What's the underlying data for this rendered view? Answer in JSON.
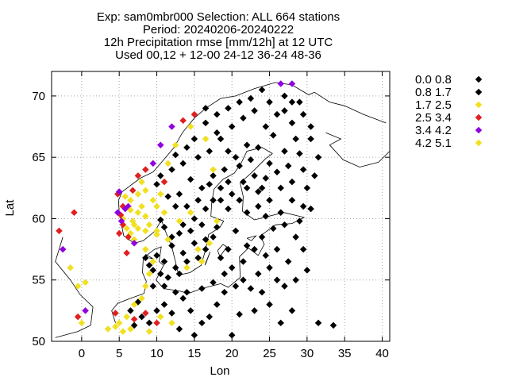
{
  "chart_data": {
    "type": "scatter",
    "title_lines": [
      "Exp: sam0mbr000   Selection: ALL    664 stations",
      "Period: 20240206-20240222",
      "12h Precipitation rmse [mm/12h] at  12 UTC",
      "Used 00,12 + 12-00 24-12 36-24 48-36"
    ],
    "xlabel": "Lon",
    "ylabel": "Lat",
    "xlim": [
      -4,
      41
    ],
    "ylim": [
      50,
      72
    ],
    "xticks": [
      0,
      5,
      10,
      15,
      20,
      25,
      30,
      35,
      40
    ],
    "yticks": [
      50,
      55,
      60,
      65,
      70
    ],
    "grid": true,
    "legend_position": "outside-right",
    "series": [
      {
        "name": "0.0 0.8",
        "color": "#000000",
        "points": [
          [
            10.5,
            59.9
          ],
          [
            11.0,
            59.3
          ],
          [
            12.0,
            58.5
          ],
          [
            13.5,
            59.5
          ],
          [
            15.0,
            60.0
          ],
          [
            16.5,
            60.8
          ],
          [
            18.0,
            59.3
          ],
          [
            17.5,
            61.5
          ],
          [
            16.0,
            62.5
          ],
          [
            14.5,
            63.2
          ],
          [
            13.0,
            62.0
          ],
          [
            12.5,
            61.0
          ],
          [
            11.5,
            61.8
          ],
          [
            10.0,
            62.8
          ],
          [
            10.5,
            63.5
          ],
          [
            12.0,
            64.0
          ],
          [
            13.5,
            64.5
          ],
          [
            15.5,
            65.0
          ],
          [
            17.0,
            65.5
          ],
          [
            18.5,
            66.5
          ],
          [
            20.0,
            67.5
          ],
          [
            21.5,
            68.2
          ],
          [
            23.0,
            68.8
          ],
          [
            25.0,
            69.5
          ],
          [
            27.0,
            70.0
          ],
          [
            29.0,
            69.5
          ],
          [
            26.0,
            68.5
          ],
          [
            24.5,
            67.5
          ],
          [
            22.0,
            66.0
          ],
          [
            20.5,
            65.0
          ],
          [
            19.0,
            64.0
          ],
          [
            17.5,
            63.5
          ],
          [
            18.5,
            62.5
          ],
          [
            20.0,
            62.0
          ],
          [
            21.5,
            63.0
          ],
          [
            23.0,
            63.5
          ],
          [
            25.0,
            64.5
          ],
          [
            27.0,
            65.5
          ],
          [
            28.5,
            66.5
          ],
          [
            29.5,
            64.0
          ],
          [
            28.0,
            63.0
          ],
          [
            26.5,
            62.5
          ],
          [
            25.0,
            61.5
          ],
          [
            23.5,
            61.0
          ],
          [
            22.0,
            60.5
          ],
          [
            24.5,
            60.2
          ],
          [
            26.5,
            60.5
          ],
          [
            28.0,
            61.5
          ],
          [
            30.0,
            62.5
          ],
          [
            30.5,
            60.8
          ],
          [
            29.0,
            59.8
          ],
          [
            27.0,
            59.5
          ],
          [
            25.5,
            59.2
          ],
          [
            24.0,
            58.5
          ],
          [
            23.0,
            57.5
          ],
          [
            24.5,
            57.0
          ],
          [
            26.0,
            57.5
          ],
          [
            27.5,
            56.5
          ],
          [
            25.0,
            56.0
          ],
          [
            23.5,
            55.5
          ],
          [
            21.5,
            55.0
          ],
          [
            22.5,
            54.3
          ],
          [
            20.5,
            54.5
          ],
          [
            19.0,
            54.0
          ],
          [
            18.0,
            53.0
          ],
          [
            17.0,
            52.0
          ],
          [
            16.0,
            51.5
          ],
          [
            14.5,
            52.5
          ],
          [
            13.5,
            53.5
          ],
          [
            12.5,
            54.0
          ],
          [
            11.0,
            53.0
          ],
          [
            10.0,
            52.5
          ],
          [
            9.0,
            51.5
          ],
          [
            8.0,
            52.0
          ],
          [
            7.0,
            51.3
          ],
          [
            6.5,
            52.5
          ],
          [
            7.5,
            53.2
          ],
          [
            9.5,
            54.5
          ],
          [
            10.5,
            55.5
          ],
          [
            9.0,
            56.2
          ],
          [
            10.0,
            57.0
          ],
          [
            12.5,
            56.0
          ],
          [
            13.0,
            55.5
          ],
          [
            14.0,
            56.5
          ],
          [
            15.5,
            56.8
          ],
          [
            16.5,
            57.5
          ],
          [
            15.0,
            58.0
          ],
          [
            13.5,
            57.2
          ],
          [
            12.0,
            57.8
          ],
          [
            11.5,
            55.2
          ],
          [
            9.5,
            55.8
          ],
          [
            8.5,
            56.8
          ],
          [
            11.0,
            56.5
          ],
          [
            14.5,
            59.0
          ],
          [
            16.0,
            59.5
          ],
          [
            17.5,
            58.5
          ],
          [
            19.5,
            57.5
          ],
          [
            21.5,
            56.5
          ],
          [
            22.0,
            57.8
          ],
          [
            20.5,
            59.0
          ],
          [
            21.0,
            61.5
          ],
          [
            19.5,
            60.8
          ],
          [
            23.5,
            62.2
          ],
          [
            24.5,
            63.3
          ],
          [
            26.0,
            63.8
          ],
          [
            27.5,
            64.3
          ],
          [
            29.0,
            65.3
          ],
          [
            30.5,
            66.5
          ],
          [
            28.0,
            67.8
          ],
          [
            27.0,
            68.8
          ],
          [
            25.5,
            66.8
          ],
          [
            23.5,
            65.8
          ],
          [
            22.5,
            64.8
          ],
          [
            21.0,
            64.3
          ],
          [
            19.5,
            65.5
          ],
          [
            18.0,
            67.0
          ],
          [
            16.5,
            67.8
          ],
          [
            15.0,
            66.5
          ],
          [
            14.0,
            65.8
          ],
          [
            12.5,
            65.2
          ],
          [
            28.5,
            58.5
          ],
          [
            29.5,
            57.5
          ],
          [
            30.0,
            55.8
          ],
          [
            28.5,
            55.0
          ],
          [
            27.0,
            54.5
          ],
          [
            26.0,
            55.0
          ],
          [
            24.0,
            54.0
          ],
          [
            31.5,
            51.5
          ],
          [
            33.5,
            51.3
          ],
          [
            28.0,
            52.5
          ],
          [
            26.5,
            51.5
          ],
          [
            25.0,
            53.0
          ],
          [
            23.0,
            52.5
          ],
          [
            21.0,
            52.2
          ],
          [
            20.0,
            50.5
          ],
          [
            11.0,
            54.5
          ],
          [
            12.0,
            52.3
          ],
          [
            13.0,
            51.0
          ],
          [
            15.0,
            50.5
          ],
          [
            14.0,
            54.0
          ],
          [
            16.0,
            54.3
          ],
          [
            17.5,
            54.8
          ],
          [
            19.0,
            55.5
          ],
          [
            20.0,
            56.0
          ],
          [
            18.5,
            56.8
          ],
          [
            16.5,
            58.3
          ],
          [
            13.0,
            58.8
          ],
          [
            15.5,
            61.5
          ],
          [
            14.0,
            61.0
          ],
          [
            17.0,
            62.8
          ],
          [
            18.5,
            61.5
          ],
          [
            19.5,
            63.0
          ],
          [
            22.0,
            62.5
          ],
          [
            24.0,
            62.5
          ],
          [
            29.5,
            61.0
          ],
          [
            31.0,
            63.5
          ],
          [
            31.5,
            65.0
          ],
          [
            30.5,
            67.5
          ],
          [
            29.5,
            68.5
          ],
          [
            28.0,
            69.5
          ],
          [
            24.0,
            70.5
          ],
          [
            22.5,
            69.8
          ],
          [
            21.0,
            69.5
          ],
          [
            19.5,
            69.0
          ],
          [
            18.0,
            68.5
          ],
          [
            16.5,
            69.0
          ]
        ]
      },
      {
        "name": "0.8 1.7",
        "color": "#000000",
        "points": []
      },
      {
        "name": "1.7 2.5",
        "color": "#f0e020",
        "points": [
          [
            5.5,
            60.0
          ],
          [
            6.0,
            59.2
          ],
          [
            6.5,
            58.8
          ],
          [
            7.0,
            58.3
          ],
          [
            7.5,
            60.5
          ],
          [
            8.0,
            61.0
          ],
          [
            8.5,
            60.2
          ],
          [
            9.0,
            59.5
          ],
          [
            9.5,
            61.5
          ],
          [
            10.5,
            62.0
          ],
          [
            6.5,
            61.5
          ],
          [
            7.5,
            62.0
          ],
          [
            8.5,
            59.0
          ],
          [
            10.0,
            58.7
          ],
          [
            11.5,
            58.3
          ],
          [
            8.5,
            57.5
          ],
          [
            9.5,
            56.5
          ],
          [
            9.0,
            55.5
          ],
          [
            8.5,
            54.5
          ],
          [
            8.0,
            53.5
          ],
          [
            7.0,
            53.0
          ],
          [
            6.0,
            52.0
          ],
          [
            5.0,
            51.5
          ],
          [
            4.5,
            51.2
          ],
          [
            3.5,
            51.0
          ],
          [
            5.5,
            50.8
          ],
          [
            6.5,
            51.0
          ],
          [
            9.0,
            50.8
          ],
          [
            10.5,
            52.0
          ],
          [
            12.0,
            51.5
          ],
          [
            -0.5,
            54.5
          ],
          [
            0.5,
            54.8
          ],
          [
            0.0,
            51.5
          ],
          [
            -1.5,
            56.0
          ],
          [
            14.0,
            56.0
          ],
          [
            16.0,
            56.5
          ],
          [
            15.5,
            57.5
          ],
          [
            17.0,
            58.0
          ],
          [
            18.0,
            59.8
          ],
          [
            14.5,
            60.5
          ],
          [
            13.0,
            59.8
          ],
          [
            8.0,
            63.0
          ],
          [
            12.5,
            66.0
          ],
          [
            14.5,
            67.5
          ],
          [
            16.5,
            66.5
          ],
          [
            17.5,
            64.0
          ],
          [
            11.5,
            64.5
          ],
          [
            10.0,
            61.0
          ],
          [
            11.0,
            60.5
          ],
          [
            7.0,
            59.5
          ]
        ]
      },
      {
        "name": "2.5 3.4",
        "color": "#e02020",
        "points": [
          [
            5.2,
            60.3
          ],
          [
            5.5,
            59.5
          ],
          [
            6.2,
            58.5
          ],
          [
            5.0,
            58.8
          ],
          [
            6.8,
            62.3
          ],
          [
            7.5,
            63.5
          ],
          [
            8.5,
            64.0
          ],
          [
            5.5,
            61.0
          ],
          [
            4.8,
            62.0
          ],
          [
            6.0,
            57.2
          ],
          [
            -0.5,
            52.0
          ],
          [
            -1.0,
            60.5
          ],
          [
            -3.0,
            59.0
          ],
          [
            10.0,
            51.5
          ],
          [
            8.5,
            52.3
          ],
          [
            15.0,
            68.5
          ],
          [
            13.5,
            68.0
          ],
          [
            11.0,
            63.0
          ],
          [
            4.5,
            52.3
          ],
          [
            7.0,
            51.8
          ]
        ]
      },
      {
        "name": "3.4 4.2",
        "color": "#9000e0",
        "points": [
          [
            5.3,
            59.8
          ],
          [
            5.8,
            60.8
          ],
          [
            6.2,
            61.0
          ],
          [
            4.8,
            60.5
          ],
          [
            5.0,
            62.2
          ],
          [
            10.5,
            66.0
          ],
          [
            -2.5,
            57.5
          ],
          [
            0.5,
            52.5
          ],
          [
            26.5,
            71.0
          ],
          [
            28.0,
            71.0
          ],
          [
            9.5,
            64.5
          ],
          [
            7.0,
            58.0
          ],
          [
            12.0,
            67.5
          ]
        ]
      },
      {
        "name": "4.2 5.1",
        "color": "#f0e020",
        "points": [
          [
            6.5,
            60.7
          ],
          [
            6.8,
            59.8
          ],
          [
            7.5,
            59.2
          ],
          [
            5.8,
            61.8
          ],
          [
            8.5,
            62.3
          ],
          [
            10.0,
            59.0
          ]
        ]
      }
    ]
  }
}
